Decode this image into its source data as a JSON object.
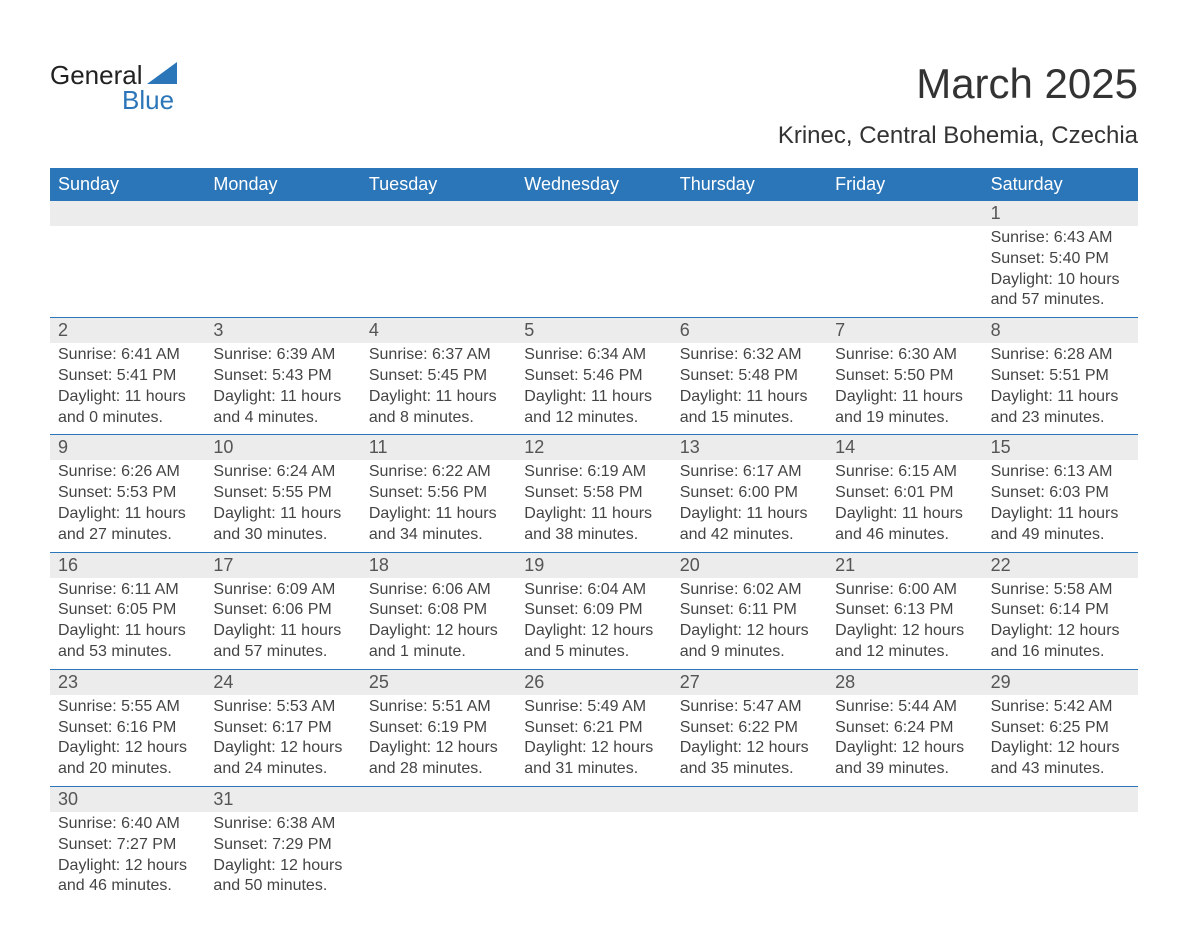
{
  "colors": {
    "header_bg": "#2b76b8",
    "header_text": "#ffffff",
    "daynum_bg": "#ececec",
    "daynum_text": "#555555",
    "body_text": "#444444",
    "title_text": "#333333",
    "row_divider": "#2b76b8",
    "page_bg": "#ffffff",
    "logo_blue": "#2b76b8"
  },
  "typography": {
    "month_title_fontsize": 42,
    "location_fontsize": 24,
    "dow_fontsize": 18,
    "daynum_fontsize": 18,
    "cell_fontsize": 16,
    "font_family": "Arial"
  },
  "logo": {
    "line1": "General",
    "line2": "Blue"
  },
  "title": {
    "month": "March 2025",
    "location": "Krinec, Central Bohemia, Czechia"
  },
  "dow": [
    "Sunday",
    "Monday",
    "Tuesday",
    "Wednesday",
    "Thursday",
    "Friday",
    "Saturday"
  ],
  "weeks": [
    [
      null,
      null,
      null,
      null,
      null,
      null,
      {
        "n": "1",
        "sunrise": "Sunrise: 6:43 AM",
        "sunset": "Sunset: 5:40 PM",
        "dl1": "Daylight: 10 hours",
        "dl2": "and 57 minutes."
      }
    ],
    [
      {
        "n": "2",
        "sunrise": "Sunrise: 6:41 AM",
        "sunset": "Sunset: 5:41 PM",
        "dl1": "Daylight: 11 hours",
        "dl2": "and 0 minutes."
      },
      {
        "n": "3",
        "sunrise": "Sunrise: 6:39 AM",
        "sunset": "Sunset: 5:43 PM",
        "dl1": "Daylight: 11 hours",
        "dl2": "and 4 minutes."
      },
      {
        "n": "4",
        "sunrise": "Sunrise: 6:37 AM",
        "sunset": "Sunset: 5:45 PM",
        "dl1": "Daylight: 11 hours",
        "dl2": "and 8 minutes."
      },
      {
        "n": "5",
        "sunrise": "Sunrise: 6:34 AM",
        "sunset": "Sunset: 5:46 PM",
        "dl1": "Daylight: 11 hours",
        "dl2": "and 12 minutes."
      },
      {
        "n": "6",
        "sunrise": "Sunrise: 6:32 AM",
        "sunset": "Sunset: 5:48 PM",
        "dl1": "Daylight: 11 hours",
        "dl2": "and 15 minutes."
      },
      {
        "n": "7",
        "sunrise": "Sunrise: 6:30 AM",
        "sunset": "Sunset: 5:50 PM",
        "dl1": "Daylight: 11 hours",
        "dl2": "and 19 minutes."
      },
      {
        "n": "8",
        "sunrise": "Sunrise: 6:28 AM",
        "sunset": "Sunset: 5:51 PM",
        "dl1": "Daylight: 11 hours",
        "dl2": "and 23 minutes."
      }
    ],
    [
      {
        "n": "9",
        "sunrise": "Sunrise: 6:26 AM",
        "sunset": "Sunset: 5:53 PM",
        "dl1": "Daylight: 11 hours",
        "dl2": "and 27 minutes."
      },
      {
        "n": "10",
        "sunrise": "Sunrise: 6:24 AM",
        "sunset": "Sunset: 5:55 PM",
        "dl1": "Daylight: 11 hours",
        "dl2": "and 30 minutes."
      },
      {
        "n": "11",
        "sunrise": "Sunrise: 6:22 AM",
        "sunset": "Sunset: 5:56 PM",
        "dl1": "Daylight: 11 hours",
        "dl2": "and 34 minutes."
      },
      {
        "n": "12",
        "sunrise": "Sunrise: 6:19 AM",
        "sunset": "Sunset: 5:58 PM",
        "dl1": "Daylight: 11 hours",
        "dl2": "and 38 minutes."
      },
      {
        "n": "13",
        "sunrise": "Sunrise: 6:17 AM",
        "sunset": "Sunset: 6:00 PM",
        "dl1": "Daylight: 11 hours",
        "dl2": "and 42 minutes."
      },
      {
        "n": "14",
        "sunrise": "Sunrise: 6:15 AM",
        "sunset": "Sunset: 6:01 PM",
        "dl1": "Daylight: 11 hours",
        "dl2": "and 46 minutes."
      },
      {
        "n": "15",
        "sunrise": "Sunrise: 6:13 AM",
        "sunset": "Sunset: 6:03 PM",
        "dl1": "Daylight: 11 hours",
        "dl2": "and 49 minutes."
      }
    ],
    [
      {
        "n": "16",
        "sunrise": "Sunrise: 6:11 AM",
        "sunset": "Sunset: 6:05 PM",
        "dl1": "Daylight: 11 hours",
        "dl2": "and 53 minutes."
      },
      {
        "n": "17",
        "sunrise": "Sunrise: 6:09 AM",
        "sunset": "Sunset: 6:06 PM",
        "dl1": "Daylight: 11 hours",
        "dl2": "and 57 minutes."
      },
      {
        "n": "18",
        "sunrise": "Sunrise: 6:06 AM",
        "sunset": "Sunset: 6:08 PM",
        "dl1": "Daylight: 12 hours",
        "dl2": "and 1 minute."
      },
      {
        "n": "19",
        "sunrise": "Sunrise: 6:04 AM",
        "sunset": "Sunset: 6:09 PM",
        "dl1": "Daylight: 12 hours",
        "dl2": "and 5 minutes."
      },
      {
        "n": "20",
        "sunrise": "Sunrise: 6:02 AM",
        "sunset": "Sunset: 6:11 PM",
        "dl1": "Daylight: 12 hours",
        "dl2": "and 9 minutes."
      },
      {
        "n": "21",
        "sunrise": "Sunrise: 6:00 AM",
        "sunset": "Sunset: 6:13 PM",
        "dl1": "Daylight: 12 hours",
        "dl2": "and 12 minutes."
      },
      {
        "n": "22",
        "sunrise": "Sunrise: 5:58 AM",
        "sunset": "Sunset: 6:14 PM",
        "dl1": "Daylight: 12 hours",
        "dl2": "and 16 minutes."
      }
    ],
    [
      {
        "n": "23",
        "sunrise": "Sunrise: 5:55 AM",
        "sunset": "Sunset: 6:16 PM",
        "dl1": "Daylight: 12 hours",
        "dl2": "and 20 minutes."
      },
      {
        "n": "24",
        "sunrise": "Sunrise: 5:53 AM",
        "sunset": "Sunset: 6:17 PM",
        "dl1": "Daylight: 12 hours",
        "dl2": "and 24 minutes."
      },
      {
        "n": "25",
        "sunrise": "Sunrise: 5:51 AM",
        "sunset": "Sunset: 6:19 PM",
        "dl1": "Daylight: 12 hours",
        "dl2": "and 28 minutes."
      },
      {
        "n": "26",
        "sunrise": "Sunrise: 5:49 AM",
        "sunset": "Sunset: 6:21 PM",
        "dl1": "Daylight: 12 hours",
        "dl2": "and 31 minutes."
      },
      {
        "n": "27",
        "sunrise": "Sunrise: 5:47 AM",
        "sunset": "Sunset: 6:22 PM",
        "dl1": "Daylight: 12 hours",
        "dl2": "and 35 minutes."
      },
      {
        "n": "28",
        "sunrise": "Sunrise: 5:44 AM",
        "sunset": "Sunset: 6:24 PM",
        "dl1": "Daylight: 12 hours",
        "dl2": "and 39 minutes."
      },
      {
        "n": "29",
        "sunrise": "Sunrise: 5:42 AM",
        "sunset": "Sunset: 6:25 PM",
        "dl1": "Daylight: 12 hours",
        "dl2": "and 43 minutes."
      }
    ],
    [
      {
        "n": "30",
        "sunrise": "Sunrise: 6:40 AM",
        "sunset": "Sunset: 7:27 PM",
        "dl1": "Daylight: 12 hours",
        "dl2": "and 46 minutes."
      },
      {
        "n": "31",
        "sunrise": "Sunrise: 6:38 AM",
        "sunset": "Sunset: 7:29 PM",
        "dl1": "Daylight: 12 hours",
        "dl2": "and 50 minutes."
      },
      null,
      null,
      null,
      null,
      null
    ]
  ]
}
